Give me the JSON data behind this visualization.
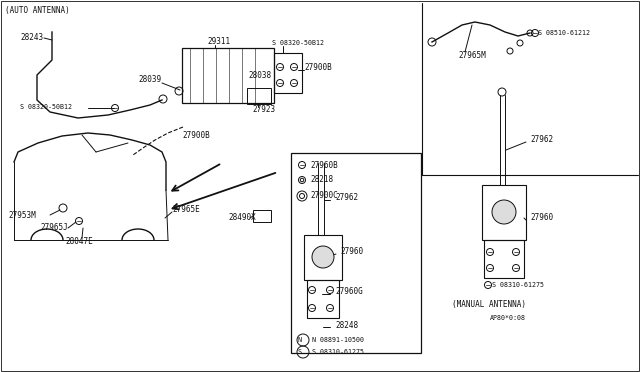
{
  "bg_color": "#ffffff",
  "line_color": "#111111",
  "fs": 5.5,
  "fs_s": 4.8,
  "labels": {
    "auto_antenna": "(AUTO ANTENNA)",
    "manual_antenna": "(MANUAL ANTENNA)",
    "diagram_code": "AP80*0:08",
    "29311": "29311",
    "28243": "28243",
    "28039": "28039",
    "s_08320": "S 08320-50B12",
    "27900B": "27900B",
    "27923": "27923",
    "28038": "28038",
    "27965M": "27965M",
    "s_08510": "S 08510-61212",
    "27960B": "27960B",
    "28218": "28218",
    "27900C": "27900C",
    "27962": "27962",
    "27960": "27960",
    "27960G": "27960G",
    "28248": "28248",
    "s_08310": "S 08310-61275",
    "n_08891": "N 08891-10500",
    "27965E": "27965E",
    "28490X": "28490X",
    "27953M": "27953M",
    "27965J": "27965J",
    "28047E": "28047E"
  }
}
